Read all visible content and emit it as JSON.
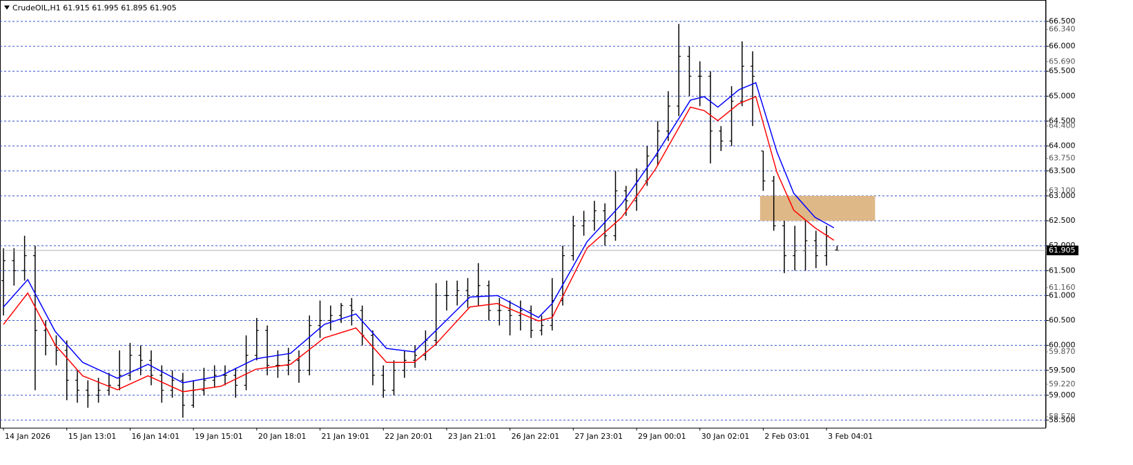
{
  "chart_data": {
    "type": "ohlc",
    "title": "CrudeOIL,H1  61.915 61.995 61.895 61.905",
    "categories": [
      "14 Jan 2026",
      null,
      null,
      null,
      null,
      null,
      "15 Jan 13:01",
      null,
      null,
      null,
      null,
      null,
      "16 Jan 14:01",
      null,
      null,
      null,
      null,
      null,
      "19 Jan 15:01",
      null,
      null,
      null,
      null,
      null,
      "20 Jan 18:01",
      null,
      null,
      null,
      null,
      null,
      "21 Jan 19:01",
      null,
      null,
      null,
      null,
      null,
      "22 Jan 20:01",
      null,
      null,
      null,
      null,
      null,
      "23 Jan 21:01",
      null,
      null,
      null,
      null,
      null,
      "26 Jan 22:01",
      null,
      null,
      null,
      null,
      null,
      "27 Jan 23:01",
      null,
      null,
      null,
      null,
      null,
      "29 Jan 00:01",
      null,
      null,
      null,
      null,
      null,
      "30 Jan 02:01",
      null,
      null,
      null,
      null,
      null,
      "2 Feb 03:01",
      null,
      null,
      null,
      null,
      null,
      "3 Feb 04:01",
      null
    ],
    "open": [
      61.3,
      61.7,
      61.5,
      61.8,
      60.3,
      60.0,
      59.9,
      59.3,
      59.1,
      59.0,
      59.1,
      59.2,
      59.4,
      59.8,
      59.7,
      59.4,
      59.1,
      59.3,
      58.8,
      59.1,
      59.3,
      59.4,
      59.4,
      59.2,
      59.8,
      60.3,
      59.6,
      59.6,
      59.7,
      59.5,
      60.4,
      60.5,
      60.6,
      60.8,
      60.7,
      60.2,
      59.4,
      59.1,
      59.5,
      59.7,
      59.8,
      60.1,
      61.0,
      61.0,
      61.1,
      61.0,
      61.2,
      60.7,
      60.7,
      60.6,
      60.7,
      60.3,
      60.4,
      60.9,
      61.8,
      62.4,
      62.5,
      62.7,
      62.2,
      63.1,
      62.9,
      63.3,
      63.8,
      64.3,
      64.8,
      65.8,
      65.4,
      65.4,
      64.3,
      64.1,
      64.9,
      65.6,
      63.9,
      63.3,
      62.4,
      61.8,
      61.9,
      62.1,
      61.8,
      61.915
    ],
    "high": [
      61.95,
      61.95,
      62.2,
      62.0,
      60.5,
      60.2,
      60.1,
      59.5,
      59.3,
      59.35,
      59.45,
      59.9,
      60.05,
      60.0,
      59.9,
      59.6,
      59.5,
      59.45,
      59.3,
      59.55,
      59.6,
      59.6,
      59.55,
      60.2,
      60.55,
      60.4,
      59.9,
      59.95,
      59.9,
      60.6,
      60.9,
      60.8,
      60.85,
      60.95,
      60.8,
      60.3,
      59.6,
      59.7,
      59.9,
      60.0,
      60.3,
      61.25,
      61.3,
      61.3,
      61.35,
      61.65,
      61.3,
      60.95,
      60.9,
      60.9,
      60.8,
      60.6,
      61.35,
      62.0,
      62.6,
      62.7,
      62.9,
      62.85,
      63.5,
      63.2,
      63.55,
      64.0,
      64.5,
      65.1,
      66.45,
      66.0,
      65.7,
      65.5,
      64.4,
      65.2,
      66.1,
      65.9,
      63.9,
      63.4,
      62.5,
      62.4,
      62.5,
      62.3,
      62.4,
      61.995
    ],
    "low": [
      60.6,
      61.2,
      61.3,
      59.1,
      59.8,
      59.6,
      58.9,
      58.85,
      58.75,
      58.85,
      59.0,
      59.1,
      59.3,
      59.4,
      59.2,
      58.85,
      58.95,
      58.55,
      58.75,
      59.0,
      59.15,
      59.2,
      58.95,
      59.1,
      59.7,
      59.4,
      59.35,
      59.4,
      59.25,
      59.4,
      60.15,
      60.3,
      60.45,
      60.4,
      60.0,
      59.2,
      58.95,
      59.0,
      59.35,
      59.55,
      59.7,
      60.0,
      60.7,
      60.8,
      60.75,
      60.8,
      60.5,
      60.4,
      60.2,
      60.3,
      60.15,
      60.2,
      60.3,
      60.8,
      61.7,
      62.2,
      62.3,
      62.0,
      62.1,
      62.6,
      62.7,
      63.2,
      63.6,
      64.1,
      64.6,
      65.0,
      64.8,
      63.65,
      63.9,
      64.0,
      64.8,
      64.4,
      63.1,
      62.3,
      61.45,
      61.5,
      61.5,
      61.55,
      61.6,
      61.895
    ],
    "close": [
      61.7,
      61.5,
      61.8,
      60.3,
      60.0,
      59.9,
      59.3,
      59.1,
      59.0,
      59.1,
      59.2,
      59.4,
      59.8,
      59.7,
      59.4,
      59.1,
      59.3,
      58.8,
      59.1,
      59.3,
      59.4,
      59.4,
      59.2,
      59.8,
      60.3,
      59.6,
      59.6,
      59.7,
      59.5,
      60.4,
      60.5,
      60.6,
      60.8,
      60.7,
      60.2,
      59.4,
      59.1,
      59.5,
      59.7,
      59.8,
      60.1,
      61.0,
      61.0,
      61.1,
      61.0,
      61.2,
      60.7,
      60.7,
      60.6,
      60.7,
      60.3,
      60.4,
      60.9,
      61.8,
      62.4,
      62.5,
      62.7,
      62.2,
      63.1,
      62.9,
      63.3,
      63.8,
      64.3,
      64.8,
      65.8,
      65.4,
      65.4,
      64.3,
      64.1,
      64.9,
      65.6,
      65.4,
      63.3,
      62.4,
      61.8,
      61.9,
      62.1,
      61.8,
      62.2,
      61.905
    ],
    "color": "#000000",
    "series": [
      {
        "color": "#0000ff",
        "x": [
          0,
          2.3,
          4.9,
          7.5,
          10.8,
          13.7,
          17.0,
          20.6,
          23.9,
          27.2,
          30.4,
          33.4,
          36.3,
          38.9,
          40.9,
          44.2,
          46.8,
          50.7,
          52.0,
          55.3,
          58.6,
          61.8,
          65.1,
          66.4,
          67.7,
          69.7,
          71.3,
          73.3,
          74.9,
          76.9,
          78.7
        ],
        "values": [
          60.77,
          61.32,
          60.28,
          59.66,
          59.34,
          59.62,
          59.25,
          59.39,
          59.73,
          59.84,
          60.42,
          60.63,
          59.94,
          59.87,
          60.28,
          60.97,
          61.0,
          60.56,
          60.84,
          62.08,
          62.84,
          63.81,
          64.92,
          64.99,
          64.78,
          65.13,
          65.27,
          63.88,
          63.05,
          62.57,
          62.36
        ]
      },
      {
        "color": "#ff0000",
        "x": [
          0,
          2.3,
          4.9,
          7.5,
          10.8,
          13.7,
          17.0,
          20.6,
          23.9,
          27.2,
          30.4,
          33.4,
          36.3,
          38.9,
          40.9,
          44.2,
          46.8,
          50.7,
          52.0,
          55.3,
          58.6,
          61.8,
          65.1,
          66.4,
          67.7,
          69.7,
          71.3,
          73.3,
          74.9,
          76.9,
          78.7
        ],
        "values": [
          60.42,
          61.05,
          60.01,
          59.39,
          59.11,
          59.39,
          59.07,
          59.18,
          59.52,
          59.62,
          60.15,
          60.35,
          59.66,
          59.66,
          60.01,
          60.77,
          60.84,
          60.49,
          60.56,
          61.95,
          62.57,
          63.54,
          64.78,
          64.71,
          64.51,
          64.85,
          64.99,
          63.47,
          62.71,
          62.36,
          62.11
        ]
      }
    ],
    "zone": {
      "x": [
        71.7,
        82.6
      ],
      "y": [
        62.5,
        63.0
      ],
      "color": "#deb887"
    },
    "current_price": {
      "value": 61.905,
      "label": "61.905"
    },
    "xlim": [
      -0.33,
      98.8
    ],
    "ylim": [
      58.348,
      66.929
    ],
    "yticks": [
      {
        "value": 58.5,
        "label": "58.500"
      },
      {
        "value": 59,
        "label": "59.000"
      },
      {
        "value": 59.5,
        "label": "59.500"
      },
      {
        "value": 60,
        "label": "60.000"
      },
      {
        "value": 60.5,
        "label": "60.500"
      },
      {
        "value": 61,
        "label": "61.000"
      },
      {
        "value": 61.5,
        "label": "61.500"
      },
      {
        "value": 62,
        "label": "62.000"
      },
      {
        "value": 62.5,
        "label": "62.500"
      },
      {
        "value": 63,
        "label": "63.000"
      },
      {
        "value": 63.5,
        "label": "63.500"
      },
      {
        "value": 64,
        "label": "64.000"
      },
      {
        "value": 64.5,
        "label": "64.500"
      },
      {
        "value": 65,
        "label": "65.000"
      },
      {
        "value": 65.5,
        "label": "65.500"
      },
      {
        "value": 66,
        "label": "66.000"
      },
      {
        "value": 66.5,
        "label": "66.500"
      }
    ],
    "scale_ticks": [
      {
        "value": 58.57,
        "label": "58.570"
      },
      {
        "value": 59.22,
        "label": "59.220"
      },
      {
        "value": 59.87,
        "label": "59.870"
      },
      {
        "value": 61.16,
        "label": "61.160"
      },
      {
        "value": 63.1,
        "label": "63.100"
      },
      {
        "value": 63.75,
        "label": "63.750"
      },
      {
        "value": 64.4,
        "label": "64.400"
      },
      {
        "value": 65.69,
        "label": "65.690"
      },
      {
        "value": 66.34,
        "label": "66.340"
      }
    ],
    "grid": true,
    "grid_color": "#3050c8"
  }
}
